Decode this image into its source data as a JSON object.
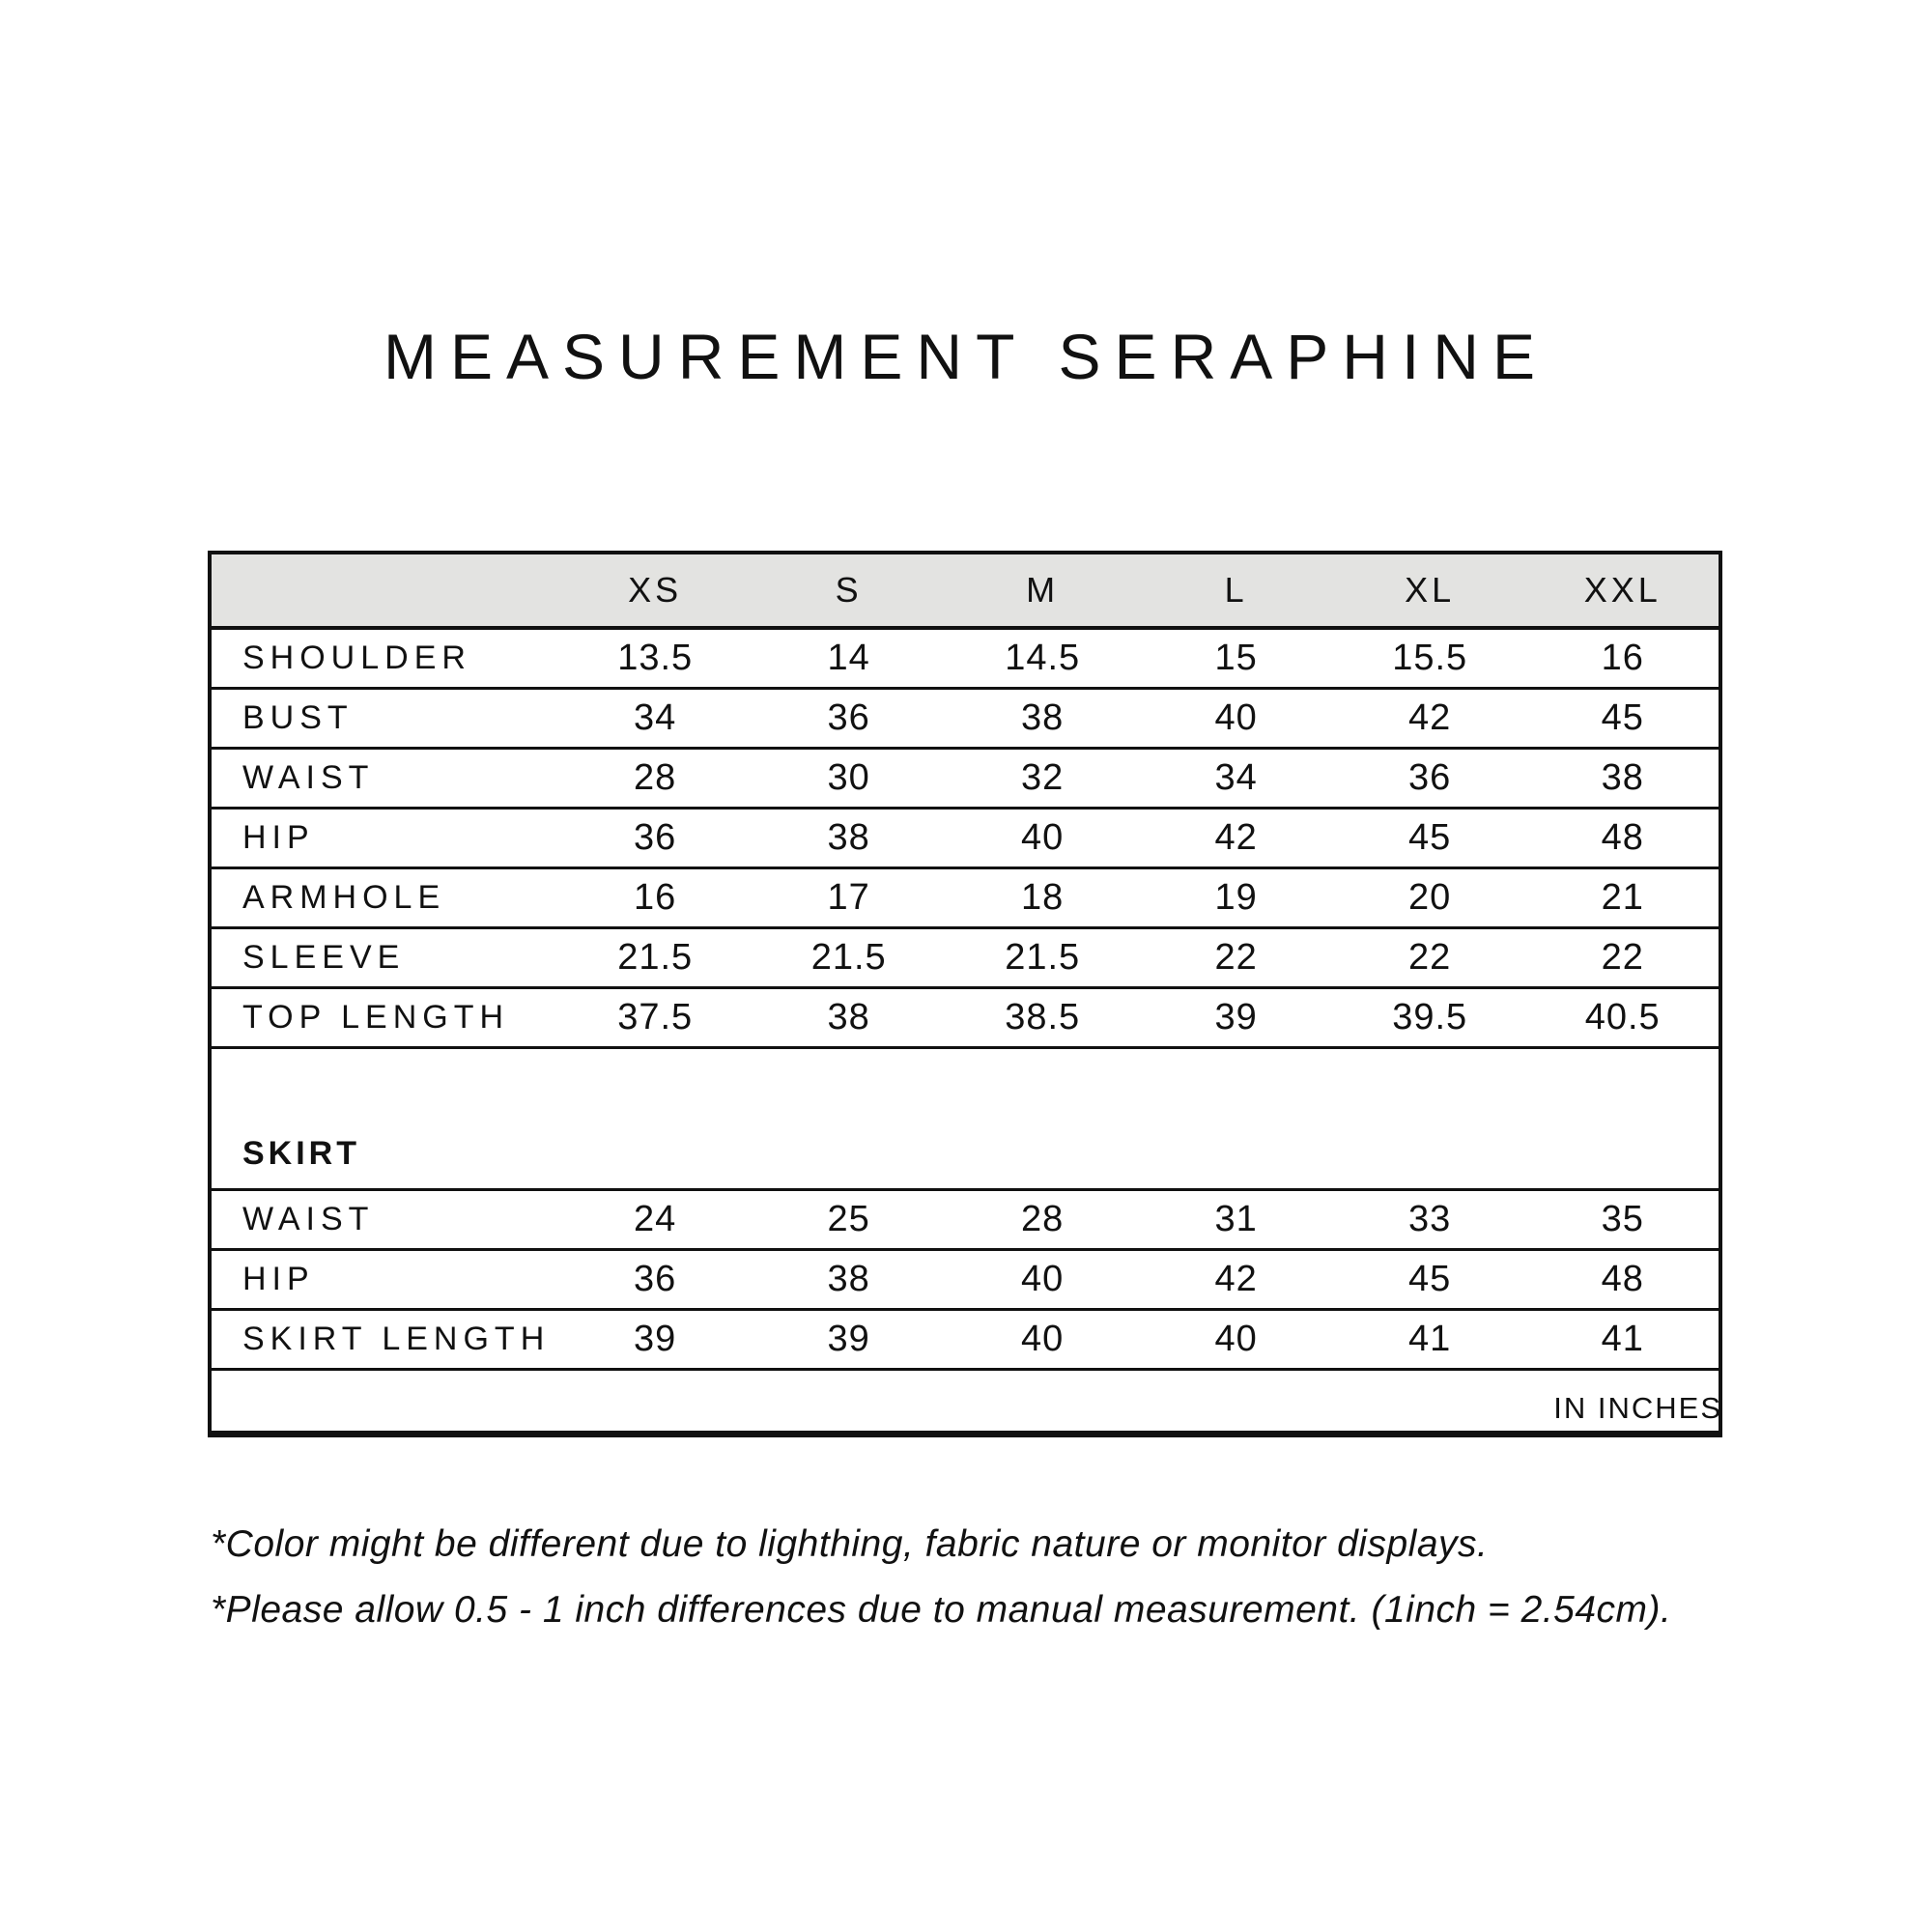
{
  "page": {
    "title": "MEASUREMENT SERAPHINE",
    "unit_note": "IN INCHES",
    "footnotes": [
      "*Color might be different due to lighthing, fabric nature or monitor displays.",
      "*Please allow 0.5 - 1 inch differences due to manual measurement. (1inch = 2.54cm)."
    ]
  },
  "colors": {
    "text": "#111111",
    "header_bg": "#e3e3e1",
    "border": "#111111",
    "background": "#ffffff"
  },
  "table": {
    "sizes": [
      "XS",
      "S",
      "M",
      "L",
      "XL",
      "XXL"
    ],
    "top_rows": [
      {
        "label": "SHOULDER",
        "values": [
          "13.5",
          "14",
          "14.5",
          "15",
          "15.5",
          "16"
        ]
      },
      {
        "label": "BUST",
        "values": [
          "34",
          "36",
          "38",
          "40",
          "42",
          "45"
        ]
      },
      {
        "label": "WAIST",
        "values": [
          "28",
          "30",
          "32",
          "34",
          "36",
          "38"
        ]
      },
      {
        "label": "HIP",
        "values": [
          "36",
          "38",
          "40",
          "42",
          "45",
          "48"
        ]
      },
      {
        "label": "ARMHOLE",
        "values": [
          "16",
          "17",
          "18",
          "19",
          "20",
          "21"
        ]
      },
      {
        "label": "SLEEVE",
        "values": [
          "21.5",
          "21.5",
          "21.5",
          "22",
          "22",
          "22"
        ]
      },
      {
        "label": "TOP LENGTH",
        "values": [
          "37.5",
          "38",
          "38.5",
          "39",
          "39.5",
          "40.5"
        ]
      }
    ],
    "section_label": "SKIRT",
    "skirt_rows": [
      {
        "label": "WAIST",
        "values": [
          "24",
          "25",
          "28",
          "31",
          "33",
          "35"
        ]
      },
      {
        "label": "HIP",
        "values": [
          "36",
          "38",
          "40",
          "42",
          "45",
          "48"
        ]
      },
      {
        "label": "SKIRT LENGTH",
        "values": [
          "39",
          "39",
          "40",
          "40",
          "41",
          "41"
        ]
      }
    ]
  },
  "chart_data": {
    "type": "table",
    "title": "MEASUREMENT SERAPHINE",
    "unit": "inches",
    "columns": [
      "XS",
      "S",
      "M",
      "L",
      "XL",
      "XXL"
    ],
    "rows": {
      "SHOULDER": [
        13.5,
        14,
        14.5,
        15,
        15.5,
        16
      ],
      "BUST": [
        34,
        36,
        38,
        40,
        42,
        45
      ],
      "WAIST": [
        28,
        30,
        32,
        34,
        36,
        38
      ],
      "HIP": [
        36,
        38,
        40,
        42,
        45,
        48
      ],
      "ARMHOLE": [
        16,
        17,
        18,
        19,
        20,
        21
      ],
      "SLEEVE": [
        21.5,
        21.5,
        21.5,
        22,
        22,
        22
      ],
      "TOP LENGTH": [
        37.5,
        38,
        38.5,
        39,
        39.5,
        40.5
      ],
      "SKIRT WAIST": [
        24,
        25,
        28,
        31,
        33,
        35
      ],
      "SKIRT HIP": [
        36,
        38,
        40,
        42,
        45,
        48
      ],
      "SKIRT LENGTH": [
        39,
        39,
        40,
        40,
        41,
        41
      ]
    }
  }
}
